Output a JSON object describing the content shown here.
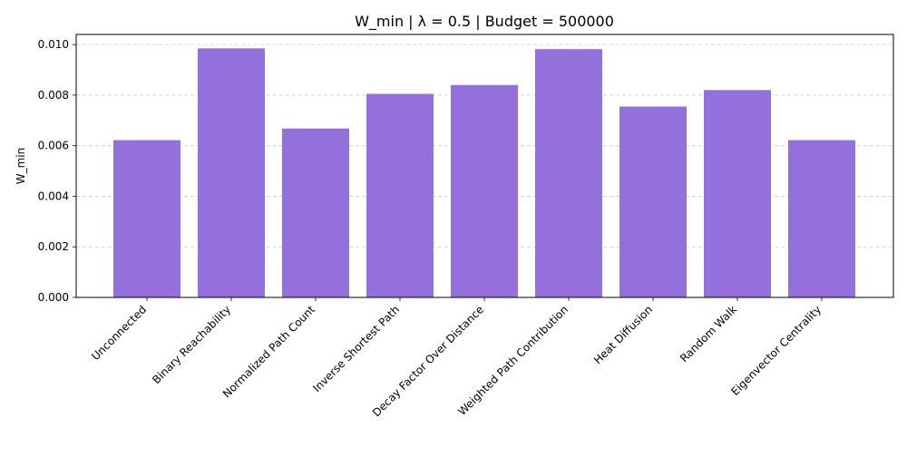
{
  "chart_data": {
    "type": "bar",
    "title": "W_min | λ = 0.5 | Budget = 500000",
    "xlabel": "",
    "ylabel": "W_min",
    "categories": [
      "Unconnected",
      "Binary Reachability",
      "Normalized Path Count",
      "Inverse Shortest Path",
      "Decay Factor Over Distance",
      "Weighted Path Contribution",
      "Heat Diffusion",
      "Random Walk",
      "Eigenvector Centrality"
    ],
    "values": [
      0.00622,
      0.00985,
      0.00668,
      0.00805,
      0.0084,
      0.00982,
      0.00755,
      0.0082,
      0.00622
    ],
    "ylim": [
      0,
      0.0104
    ],
    "yticks": [
      "0.000",
      "0.002",
      "0.004",
      "0.006",
      "0.008",
      "0.010"
    ],
    "bar_color": "#9370db",
    "grid": "y-dashed"
  }
}
